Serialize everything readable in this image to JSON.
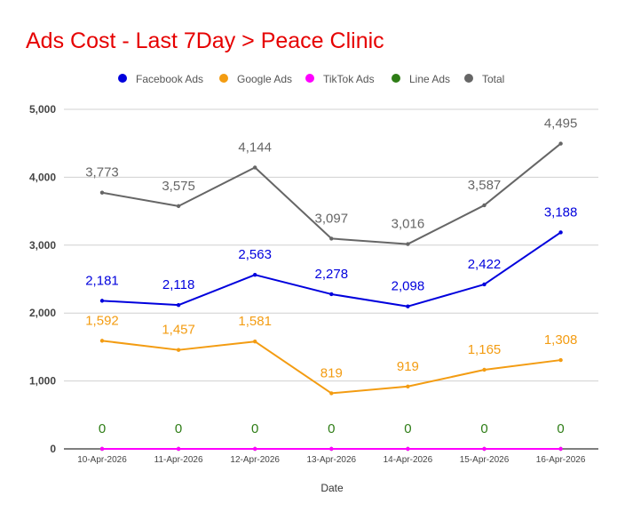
{
  "chart_data": {
    "type": "line",
    "title": "Ads Cost - Last 7Day > Peace Clinic",
    "xlabel": "Date",
    "ylabel": "",
    "ylim": [
      0,
      5000
    ],
    "yticks": [
      "0",
      "1,000",
      "2,000",
      "3,000",
      "4,000",
      "5,000"
    ],
    "categories": [
      "10-Apr-2026",
      "11-Apr-2026",
      "12-Apr-2026",
      "13-Apr-2026",
      "14-Apr-2026",
      "15-Apr-2026",
      "16-Apr-2026"
    ],
    "grid": true,
    "legend_position": "top",
    "series": [
      {
        "name": "Facebook Ads",
        "color": "#0000dd",
        "values": [
          2181,
          2118,
          2563,
          2278,
          2098,
          2422,
          3188
        ],
        "labels": [
          "2,181",
          "2,118",
          "2,563",
          "2,278",
          "2,098",
          "2,422",
          "3,188"
        ]
      },
      {
        "name": "Google Ads",
        "color": "#f39c12",
        "values": [
          1592,
          1457,
          1581,
          819,
          919,
          1165,
          1308
        ],
        "labels": [
          "1,592",
          "1,457",
          "1,581",
          "819",
          "919",
          "1,165",
          "1,308"
        ]
      },
      {
        "name": "TikTok Ads",
        "color": "#ff00ff",
        "values": [
          0,
          0,
          0,
          0,
          0,
          0,
          0
        ],
        "labels": []
      },
      {
        "name": "Line Ads",
        "color": "#2e7d16",
        "values": [
          0,
          0,
          0,
          0,
          0,
          0,
          0
        ],
        "labels": [
          "0",
          "0",
          "0",
          "0",
          "0",
          "0",
          "0"
        ]
      },
      {
        "name": "Total",
        "color": "#666666",
        "values": [
          3773,
          3575,
          4144,
          3097,
          3016,
          3587,
          4495
        ],
        "labels": [
          "3,773",
          "3,575",
          "4,144",
          "3,097",
          "3,016",
          "3,587",
          "4,495"
        ]
      }
    ]
  }
}
